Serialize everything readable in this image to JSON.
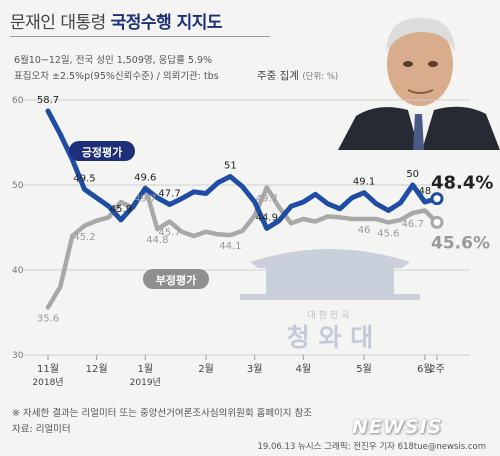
{
  "header": {
    "title_main": "문재인 대통령 ",
    "title_highlight": "국정수행 지지도",
    "survey_line1": "6월10~12일, 전국 성인 1,509명, 응답률 5.9%",
    "survey_line2": "표집오차 ±2.5%p(95%신뢰수준) / 의뢰기관: tbs",
    "aggregation": "주중 집계",
    "unit": "(단위: %)"
  },
  "watermark": {
    "emblem_text": "대한민국",
    "name": "청 와 대"
  },
  "footer": {
    "note": "※ 자세한 결과는 리얼미터 또는 중앙선거여론조사심의위원회 홈페이지 참조",
    "source": "자료: 리얼미터",
    "credit": "19.06.13  뉴시스 그래픽: 전진우 기자 618tue@newsis.com",
    "brand": "NEWSIS"
  },
  "colors": {
    "approve": "#1f4da6",
    "disapprove": "#a8a8a8",
    "approve_label": "#1d2f7a",
    "grid": "#d0d0d0",
    "watermark": "#c9cfdb"
  },
  "chart_data": {
    "type": "line",
    "ylim": [
      30,
      60
    ],
    "yticks": [
      30,
      40,
      50,
      60
    ],
    "x_labels": [
      {
        "i": 0,
        "month": "11월",
        "year": "2018년"
      },
      {
        "i": 4,
        "month": "12월",
        "year": ""
      },
      {
        "i": 8,
        "month": "1월",
        "year": "2019년"
      },
      {
        "i": 13,
        "month": "2월",
        "year": ""
      },
      {
        "i": 17,
        "month": "3월",
        "year": ""
      },
      {
        "i": 21,
        "month": "4월",
        "year": ""
      },
      {
        "i": 26,
        "month": "5월",
        "year": ""
      },
      {
        "i": 31,
        "month": "6월",
        "year": ""
      },
      {
        "i": 32,
        "month": "2주",
        "year": ""
      }
    ],
    "series": [
      {
        "name": "긍정평가",
        "values": [
          58.7,
          56,
          53,
          49.5,
          48.5,
          47.5,
          45.9,
          47.5,
          49.6,
          48.5,
          47.7,
          48.4,
          49.2,
          49.0,
          50.3,
          51,
          49.8,
          48.0,
          44.9,
          45.8,
          47.5,
          48.0,
          48.9,
          47.8,
          47.2,
          48.5,
          49.1,
          47.8,
          47.0,
          47.9,
          50,
          48,
          48.4
        ],
        "labels": {
          "0": "58.7",
          "3": "49.5",
          "6": "45.9",
          "8": "49.6",
          "10": "47.7",
          "15": "51",
          "18": "44.9",
          "26": "49.1",
          "30": "50",
          "31": "48",
          "32": "48.4%"
        }
      },
      {
        "name": "부정평가",
        "values": [
          35.6,
          38,
          44,
          45.2,
          45.8,
          46.2,
          48,
          47.3,
          49.7,
          44.8,
          45.7,
          44.5,
          44.0,
          44.5,
          44.2,
          44.1,
          44.6,
          46.4,
          49.7,
          47.4,
          45.5,
          46.0,
          45.7,
          46.3,
          46.2,
          46.0,
          46,
          46.0,
          45.6,
          45.9,
          46.7,
          47.0,
          45.6
        ],
        "labels": {
          "0": "35.6",
          "3": "45.2",
          "8": "49.7",
          "9": "44.8",
          "10": "45.7",
          "15": "44.1",
          "18": "49.7",
          "26": "46",
          "28": "45.6",
          "30": "46.7",
          "32": "45.6%"
        }
      }
    ]
  }
}
